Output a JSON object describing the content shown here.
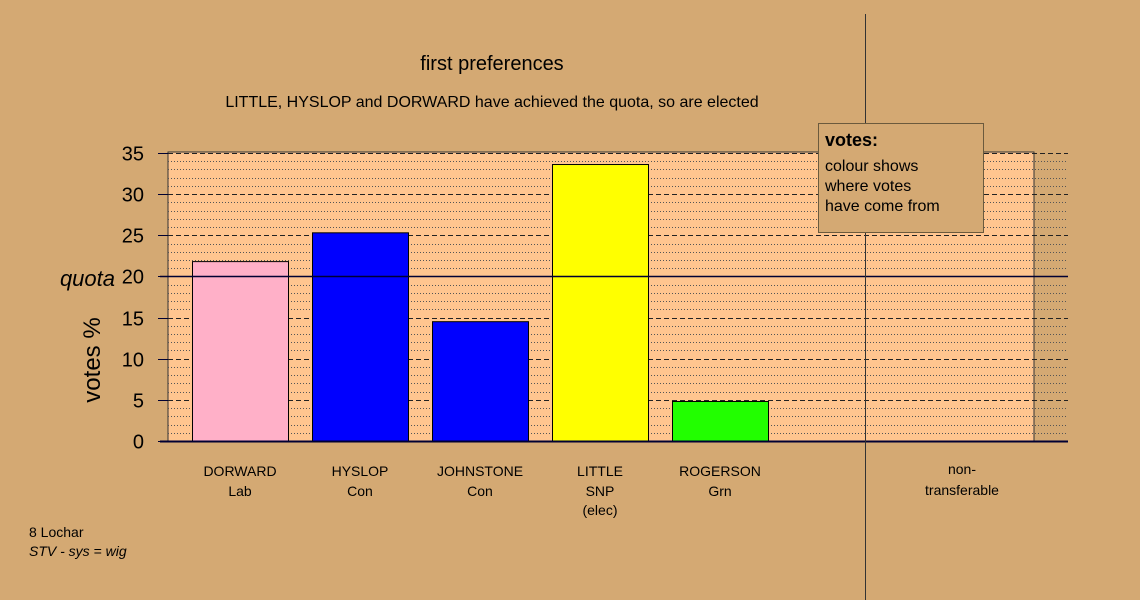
{
  "chart_data": {
    "type": "bar",
    "title": "first preferences",
    "subtitle": "LITTLE, HYSLOP and DORWARD have achieved the quota, so are elected",
    "ylabel": "votes %",
    "quota_label": "quota",
    "quota_value": 20,
    "ylim": [
      0,
      35
    ],
    "yticks": [
      0,
      5,
      10,
      15,
      20,
      25,
      30,
      35
    ],
    "grid": true,
    "categories": [
      {
        "name": "DORWARD",
        "party": "Lab",
        "note": "",
        "value": 21.8,
        "color": "#ffb0c8"
      },
      {
        "name": "HYSLOP",
        "party": "Con",
        "note": "",
        "value": 25.3,
        "color": "#0000ff"
      },
      {
        "name": "JOHNSTONE",
        "party": "Con",
        "note": "",
        "value": 14.5,
        "color": "#0000ff"
      },
      {
        "name": "LITTLE",
        "party": "SNP",
        "note": "(elec)",
        "value": 33.6,
        "color": "#ffff00"
      },
      {
        "name": "ROGERSON",
        "party": "Grn",
        "note": "",
        "value": 4.8,
        "color": "#22ff00"
      }
    ],
    "nontransferable": {
      "line1": "non-",
      "line2": "transferable",
      "value": 0
    }
  },
  "legend": {
    "title": "votes:",
    "lines": [
      "colour shows",
      "where votes",
      "have come from"
    ]
  },
  "footer": {
    "constituency": "8 Lochar",
    "system": "STV - sys = wig"
  },
  "colors": {
    "background": "#d4a973",
    "plot_area": "#ffc58f",
    "axis": "#000033"
  }
}
